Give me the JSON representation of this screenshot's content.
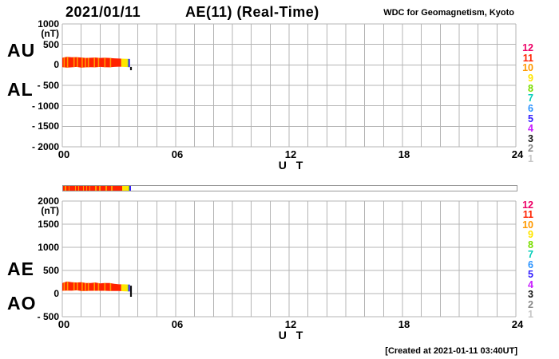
{
  "header": {
    "date": "2021/01/11",
    "title": "AE(11) (Real-Time)",
    "credit": "WDC for Geomagnetism, Kyoto"
  },
  "footer": {
    "created_text": "[Created at 2021-01-11 03:40UT]"
  },
  "axis_labels": {
    "top_upper": "AU",
    "top_lower": "AL",
    "bottom_upper": "AE",
    "bottom_lower": "AO",
    "x_label_top": "U T",
    "x_label_bottom": "U T"
  },
  "legend": {
    "meaning": "number of contributing stations",
    "items": [
      {
        "label": "12",
        "color": "#ee0066"
      },
      {
        "label": "11",
        "color": "#ff2200"
      },
      {
        "label": "10",
        "color": "#ff9900"
      },
      {
        "label": "9",
        "color": "#ffe600"
      },
      {
        "label": "8",
        "color": "#7bdd00"
      },
      {
        "label": "7",
        "color": "#00ccb8"
      },
      {
        "label": "6",
        "color": "#2f95ff"
      },
      {
        "label": "5",
        "color": "#3520ff"
      },
      {
        "label": "4",
        "color": "#c81eff"
      },
      {
        "label": "3",
        "color": "#1a1a1a"
      },
      {
        "label": "2",
        "color": "#8a8a8a"
      },
      {
        "label": "1",
        "color": "#c6c6c6"
      }
    ]
  },
  "coverage": {
    "segments": [
      {
        "from_hour": 0.0,
        "to_hour": 3.12,
        "stations": 11,
        "color": "#ff2200"
      },
      {
        "from_hour": 3.12,
        "to_hour": 3.45,
        "stations": 9,
        "color": "#ffe600"
      },
      {
        "from_hour": 3.45,
        "to_hour": 3.5,
        "stations": 8,
        "color": "#7bdd00"
      },
      {
        "from_hour": 3.5,
        "to_hour": 3.6,
        "stations": 5,
        "color": "#3520ff"
      }
    ],
    "stripes": {
      "stations": 10,
      "color": "#ff9900",
      "hours": [
        0.1,
        0.28,
        0.62,
        0.8,
        1.05,
        1.22,
        1.38,
        1.7,
        1.92,
        2.25,
        2.55
      ]
    }
  },
  "chart_data": [
    {
      "type": "area",
      "title": "AU and AL indices",
      "unit": "(nT)",
      "xlabel": "U T",
      "ylim": [
        -2000,
        1000
      ],
      "ytick_values": [
        1000,
        500,
        0,
        -500,
        -1000,
        -1500,
        -2000
      ],
      "ytick_labels": [
        "1000",
        "500",
        "0",
        "- 500",
        "- 1000",
        "- 1500",
        "- 2000"
      ],
      "xlim_hours": [
        0,
        24
      ],
      "xtick_values": [
        0,
        6,
        12,
        18,
        24
      ],
      "xtick_labels": [
        "00",
        "06",
        "12",
        "18",
        "24"
      ],
      "grid": "1-hour vertical, 500 nT horizontal, light gray",
      "x_hours": [
        0,
        0.25,
        0.5,
        0.75,
        1.0,
        1.25,
        1.5,
        1.75,
        2.0,
        2.25,
        2.5,
        2.75,
        3.0,
        3.25,
        3.58
      ],
      "series": [
        {
          "name": "AU",
          "values": [
            175,
            195,
            185,
            190,
            180,
            170,
            175,
            180,
            170,
            175,
            170,
            160,
            155,
            150,
            145
          ]
        },
        {
          "name": "AL",
          "values": [
            -55,
            -65,
            -60,
            -50,
            -65,
            -60,
            -55,
            -60,
            -50,
            -55,
            -60,
            -50,
            -45,
            -50,
            -55
          ]
        }
      ],
      "end_tick": {
        "hour": 3.63,
        "from_nt": -50,
        "to_nt": -130,
        "color": "#111111"
      }
    },
    {
      "type": "area",
      "title": "AE and AO indices",
      "unit": "(nT)",
      "xlabel": "U T",
      "ylim": [
        -500,
        2000
      ],
      "ytick_values": [
        2000,
        1500,
        1000,
        500,
        0,
        -500
      ],
      "ytick_labels": [
        "2000",
        "1500",
        "1000",
        "500",
        "0",
        "- 500"
      ],
      "xlim_hours": [
        0,
        24
      ],
      "xtick_values": [
        0,
        6,
        12,
        18,
        24
      ],
      "xtick_labels": [
        "00",
        "06",
        "12",
        "18",
        "24"
      ],
      "grid": "1-hour vertical, 500 nT horizontal, light gray",
      "x_hours": [
        0,
        0.25,
        0.5,
        0.75,
        1.0,
        1.25,
        1.5,
        1.75,
        2.0,
        2.25,
        2.5,
        2.75,
        3.0,
        3.25,
        3.58
      ],
      "series": [
        {
          "name": "AE",
          "values": [
            230,
            260,
            245,
            240,
            245,
            230,
            230,
            240,
            220,
            230,
            230,
            210,
            200,
            200,
            195
          ]
        },
        {
          "name": "AO",
          "values": [
            60,
            65,
            62,
            70,
            57,
            55,
            60,
            60,
            60,
            60,
            55,
            55,
            55,
            50,
            45
          ]
        }
      ],
      "end_tick": {
        "hour": 3.63,
        "from_nt": 170,
        "to_nt": -70,
        "color": "#111111"
      }
    }
  ]
}
